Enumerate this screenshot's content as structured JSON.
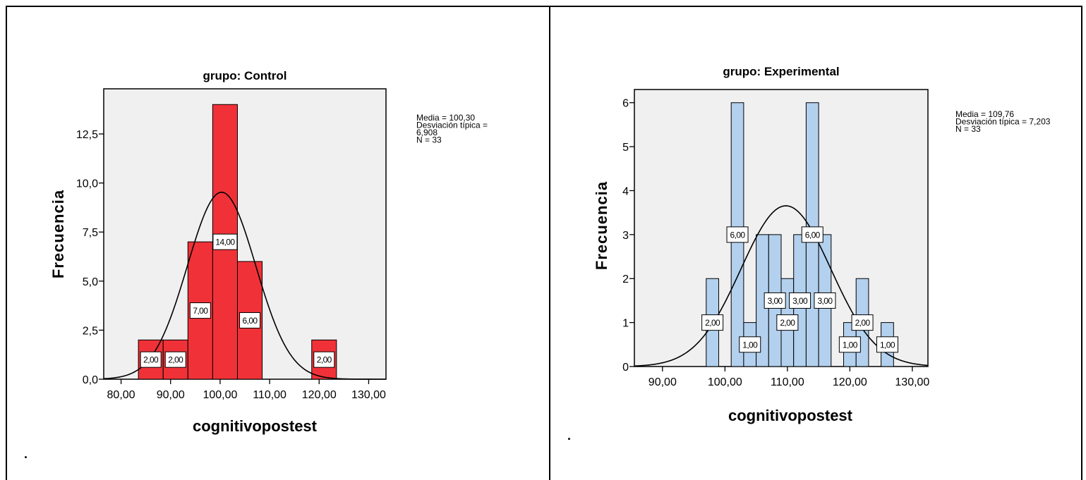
{
  "chart_data": [
    {
      "type": "bar",
      "title": "grupo: Control",
      "xlabel": "cognitivopostest",
      "ylabel": "Frecuencia",
      "bar_color": "#f03238",
      "xlim": [
        76.5,
        133.5
      ],
      "ylim": [
        0,
        14.8
      ],
      "xticks": [
        80,
        90,
        100,
        110,
        120,
        130
      ],
      "xtick_labels": [
        "80,00",
        "90,00",
        "100,00",
        "110,00",
        "120,00",
        "130,00"
      ],
      "yticks": [
        0,
        2.5,
        5,
        7.5,
        10,
        12.5
      ],
      "ytick_labels": [
        "0,0",
        "2,5",
        "5,0",
        "7,5",
        "10,0",
        "12,5"
      ],
      "bins": [
        {
          "x0": 83.5,
          "x1": 88.5,
          "count": 2,
          "label": "2,00"
        },
        {
          "x0": 88.5,
          "x1": 93.5,
          "count": 2,
          "label": "2,00"
        },
        {
          "x0": 93.5,
          "x1": 98.5,
          "count": 7,
          "label": "7,00"
        },
        {
          "x0": 98.5,
          "x1": 103.5,
          "count": 14,
          "label": "14,00"
        },
        {
          "x0": 103.5,
          "x1": 108.5,
          "count": 6,
          "label": "6,00"
        },
        {
          "x0": 118.5,
          "x1": 123.5,
          "count": 2,
          "label": "2,00"
        }
      ],
      "normal_curve": {
        "mean": 100.3,
        "sd": 6.908,
        "n": 33,
        "bin_width": 5
      },
      "stats": [
        "Media = 100,30",
        "Desviación típica =",
        "6,908",
        "N = 33"
      ],
      "footnote": "."
    },
    {
      "type": "bar",
      "title": "grupo: Experimental",
      "xlabel": "cognitivopostest",
      "ylabel": "Frecuencia",
      "bar_color": "#b3d0ee",
      "xlim": [
        85.5,
        132.5
      ],
      "ylim": [
        0,
        6.3
      ],
      "xticks": [
        90,
        100,
        110,
        120,
        130
      ],
      "xtick_labels": [
        "90,00",
        "100,00",
        "110,00",
        "120,00",
        "130,00"
      ],
      "yticks": [
        0,
        1,
        2,
        3,
        4,
        5,
        6
      ],
      "ytick_labels": [
        "0",
        "1",
        "2",
        "3",
        "4",
        "5",
        "6"
      ],
      "bins": [
        {
          "x0": 97,
          "x1": 99,
          "count": 2,
          "label": "2,00"
        },
        {
          "x0": 101,
          "x1": 103,
          "count": 6,
          "label": "6,00"
        },
        {
          "x0": 103,
          "x1": 105,
          "count": 1,
          "label": "1,00"
        },
        {
          "x0": 105,
          "x1": 107,
          "count": 3,
          "label": ""
        },
        {
          "x0": 107,
          "x1": 109,
          "count": 3,
          "label": "3,00"
        },
        {
          "x0": 109,
          "x1": 111,
          "count": 2,
          "label": "2,00"
        },
        {
          "x0": 111,
          "x1": 113,
          "count": 3,
          "label": "3,00"
        },
        {
          "x0": 113,
          "x1": 115,
          "count": 6,
          "label": "6,00"
        },
        {
          "x0": 115,
          "x1": 117,
          "count": 3,
          "label": "3,00"
        },
        {
          "x0": 119,
          "x1": 121,
          "count": 1,
          "label": "1,00"
        },
        {
          "x0": 121,
          "x1": 123,
          "count": 2,
          "label": "2,00"
        },
        {
          "x0": 125,
          "x1": 127,
          "count": 1,
          "label": "1,00"
        }
      ],
      "normal_curve": {
        "mean": 109.76,
        "sd": 7.203,
        "n": 33,
        "bin_width": 2
      },
      "stats": [
        "Media = 109,76",
        "Desviación típica = 7,203",
        "N = 33"
      ],
      "footnote": "."
    }
  ]
}
